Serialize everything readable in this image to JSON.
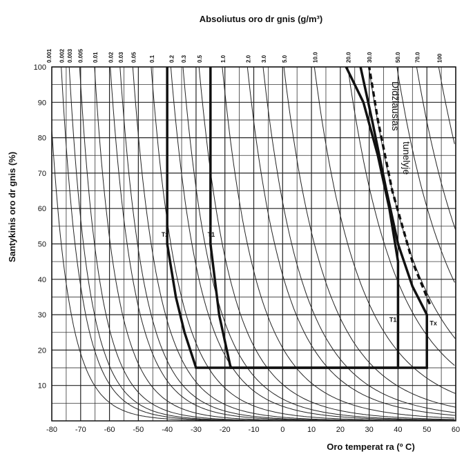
{
  "chart_data": {
    "type": "line",
    "title": "Absoliutus oro dr  gnis (g/m³)",
    "x_label": "Oro temperat  ra (º C)",
    "y_label": "Santykinis oro dr  gnis (%)",
    "xlim": [
      -80,
      60
    ],
    "ylim": [
      0,
      100
    ],
    "xticks": [
      -80,
      -70,
      -60,
      -50,
      -40,
      -30,
      -20,
      -10,
      0,
      10,
      20,
      30,
      40,
      50,
      60
    ],
    "yticks": [
      10,
      20,
      30,
      40,
      50,
      60,
      70,
      80,
      90,
      100
    ],
    "x_minor_ticks": [
      -75,
      -65,
      -55,
      -45,
      -35,
      -25,
      -15,
      -5,
      5,
      15,
      25,
      35,
      45,
      55
    ],
    "y_minor_ticks": [
      5,
      15,
      25,
      35,
      45,
      55,
      65,
      75,
      85,
      95
    ],
    "grid": true,
    "abs_humidity": [
      {
        "value": 0.001,
        "label": "0.001"
      },
      {
        "value": 0.002,
        "label": "0.002"
      },
      {
        "value": 0.003,
        "label": "0.003"
      },
      {
        "value": 0.005,
        "label": "0.005"
      },
      {
        "value": 0.01,
        "label": "0.01"
      },
      {
        "value": 0.02,
        "label": "0.02"
      },
      {
        "value": 0.03,
        "label": "0.03"
      },
      {
        "value": 0.05,
        "label": "0.05"
      },
      {
        "value": 0.1,
        "label": "0.1"
      },
      {
        "value": 0.2,
        "label": "0.2"
      },
      {
        "value": 0.3,
        "label": "0.3"
      },
      {
        "value": 0.5,
        "label": "0.5"
      },
      {
        "value": 1.0,
        "label": "1.0"
      },
      {
        "value": 2.0,
        "label": "2.0"
      },
      {
        "value": 3.0,
        "label": "3.0"
      },
      {
        "value": 5.0,
        "label": "5.0"
      },
      {
        "value": 10.0,
        "label": "10.0"
      },
      {
        "value": 20.0,
        "label": "20.0"
      },
      {
        "value": 30.0,
        "label": "30.0"
      },
      {
        "value": 50.0,
        "label": "50.0"
      },
      {
        "value": 70.0,
        "label": "70.0"
      },
      100
    ],
    "series": [
      {
        "name": "Tx",
        "color": "#111",
        "dashed": false,
        "x": [
          -40,
          -40,
          -37,
          -34,
          -30,
          50,
          50,
          45,
          40,
          36,
          31,
          27
        ],
        "y": [
          100,
          50,
          35,
          25,
          15,
          15,
          30,
          38,
          50,
          65,
          85,
          100
        ],
        "label_pos": [
          -42,
          52
        ]
      },
      {
        "name": "T1",
        "color": "#111",
        "dashed": false,
        "x": [
          -25,
          -25,
          -22,
          -18,
          40,
          40,
          37,
          33,
          28,
          22
        ],
        "y": [
          100,
          50,
          30,
          15,
          15,
          45,
          60,
          75,
          90,
          100
        ],
        "label_pos": [
          -26,
          52
        ]
      },
      {
        "name": "T1",
        "color": "#111",
        "dashed": false,
        "x": [],
        "y": [],
        "label_pos": [
          37,
          28
        ]
      },
      {
        "name": "Tx",
        "color": "#111",
        "dashed": false,
        "x": [],
        "y": [],
        "label_pos": [
          51,
          27
        ]
      },
      {
        "name": "Didžiausias tunelyje",
        "color": "#111",
        "dashed": true,
        "x": [
          51,
          45,
          38,
          33,
          30
        ],
        "y": [
          33,
          45,
          65,
          85,
          100
        ]
      }
    ],
    "annotations": [
      "Didžiausias",
      "tunelyje"
    ]
  }
}
